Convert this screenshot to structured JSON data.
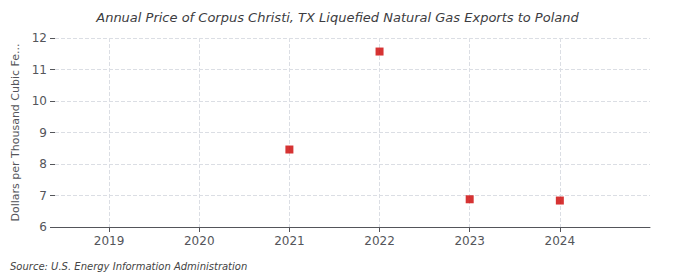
{
  "chart_data": {
    "type": "scatter",
    "title": "Annual Price of Corpus Christi, TX Liquefied Natural Gas Exports to Poland",
    "ylabel": "Dollars per Thousand Cubic Fe...",
    "annotations": [
      "Source: U.S. Energy Information Administration"
    ],
    "x": [
      2021,
      2022,
      2023,
      2024
    ],
    "values": [
      8.46,
      11.57,
      6.88,
      6.84
    ],
    "color": "#cc0000",
    "marker": "square",
    "xlim": [
      2018.4,
      2025.0
    ],
    "xticks": [
      2019,
      2020,
      2021,
      2022,
      2023,
      2024
    ],
    "ylim": [
      6,
      12
    ],
    "yticks": [
      6,
      7,
      8,
      9,
      10,
      11,
      12
    ],
    "grid": true
  }
}
